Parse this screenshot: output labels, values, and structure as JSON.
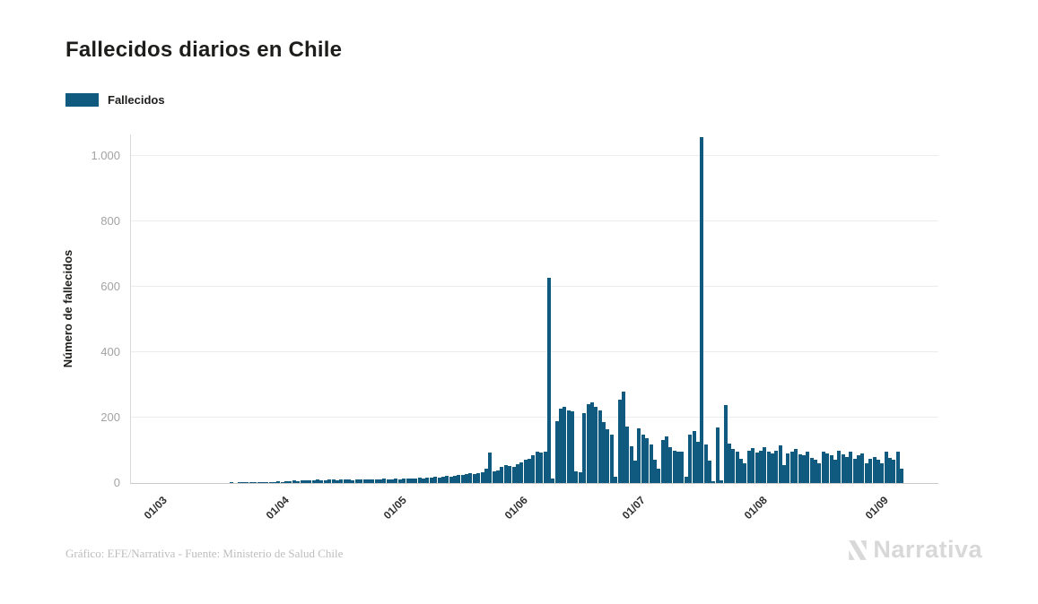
{
  "title": "Fallecidos diarios en Chile",
  "legend": {
    "label": "Fallecidos",
    "color": "#10597f"
  },
  "y_axis": {
    "title": "Número de fallecidos",
    "tick_labels": [
      "0",
      "200",
      "400",
      "600",
      "800",
      "1.000"
    ]
  },
  "x_axis": {
    "tick_labels": [
      "01/03",
      "01/04",
      "01/05",
      "01/06",
      "01/07",
      "01/08",
      "01/09"
    ]
  },
  "footer": {
    "credit": "Gráfico: EFE/Narrativa - Fuente: Ministerio de Salud Chile"
  },
  "logo": {
    "text": "Narrativa"
  },
  "chart_data": {
    "type": "bar",
    "title": "Fallecidos diarios en Chile",
    "series_name": "Fallecidos",
    "ylabel": "Número de fallecidos",
    "xlabel": "",
    "start_date": "03/03/2020",
    "frequency": "daily",
    "bar_color": "#10597f",
    "grid": "horizontal",
    "legend_position": "top-left",
    "ylim": [
      0,
      1066
    ],
    "y_tick_values": [
      0,
      200,
      400,
      600,
      800,
      1000
    ],
    "x_tick_labels": [
      "01/03",
      "01/04",
      "01/05",
      "01/06",
      "01/07",
      "01/08",
      "01/09"
    ],
    "x_tick_day_indices": [
      -2,
      29,
      59,
      90,
      120,
      151,
      182
    ],
    "notable_points": {
      "08/06/2020": 627,
      "17/07/2020": 1057
    },
    "values": [
      0,
      0,
      0,
      0,
      0,
      0,
      0,
      0,
      0,
      0,
      0,
      0,
      0,
      0,
      0,
      0,
      1,
      0,
      1,
      2,
      1,
      2,
      2,
      2,
      3,
      2,
      4,
      4,
      5,
      4,
      6,
      5,
      7,
      6,
      8,
      7,
      9,
      8,
      10,
      9,
      8,
      10,
      11,
      9,
      12,
      10,
      11,
      9,
      12,
      10,
      11,
      12,
      10,
      12,
      11,
      13,
      12,
      11,
      13,
      12,
      14,
      13,
      15,
      14,
      16,
      15,
      17,
      16,
      18,
      17,
      19,
      21,
      20,
      23,
      25,
      24,
      27,
      29,
      28,
      31,
      34,
      45,
      92,
      35,
      38,
      48,
      55,
      53,
      50,
      57,
      62,
      70,
      75,
      85,
      95,
      92,
      96,
      627,
      15,
      190,
      227,
      232,
      222,
      219,
      35,
      32,
      213,
      240,
      247,
      232,
      222,
      186,
      165,
      148,
      20,
      254,
      280,
      173,
      112,
      68,
      167,
      148,
      137,
      118,
      71,
      44,
      132,
      142,
      110,
      99,
      97,
      95,
      20,
      148,
      159,
      126,
      1057,
      118,
      68,
      5,
      170,
      8,
      238,
      120,
      105,
      95,
      75,
      60,
      98,
      108,
      93,
      100,
      110,
      96,
      90,
      100,
      115,
      55,
      90,
      95,
      105,
      88,
      84,
      96,
      78,
      72,
      60,
      95,
      90,
      85,
      70,
      98,
      88,
      80,
      95,
      75,
      85,
      90,
      60,
      75,
      80,
      70,
      60,
      96,
      78,
      72,
      95,
      45
    ]
  }
}
